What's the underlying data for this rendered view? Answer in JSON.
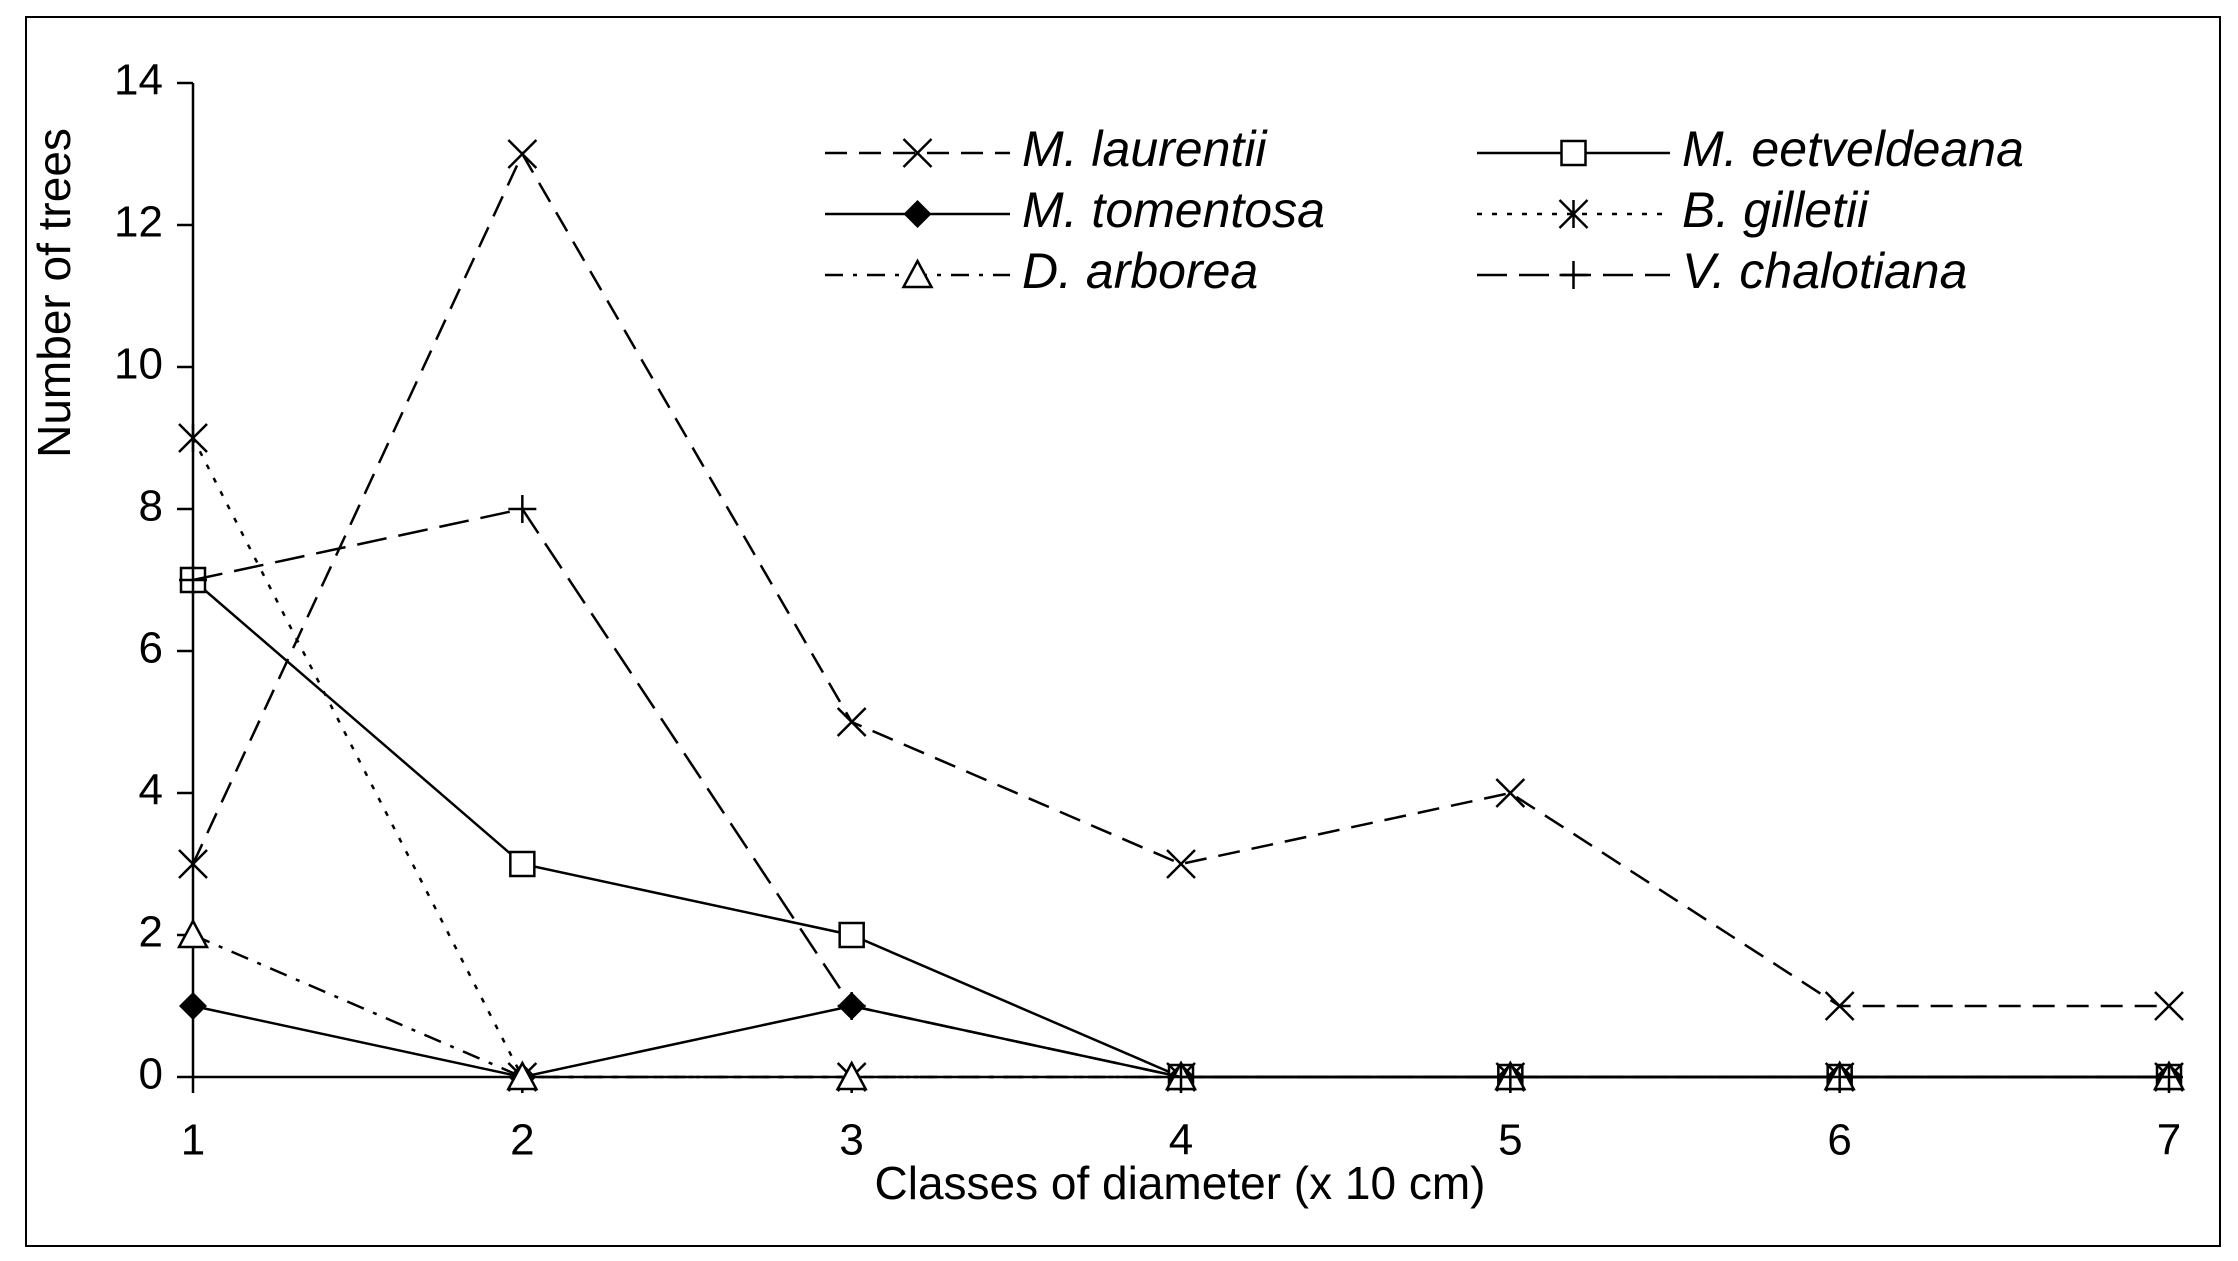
{
  "chart_data": {
    "type": "line",
    "x_label": "Classes of diameter (x 10 cm)",
    "y_label": "Number of trees",
    "categories": [
      "1",
      "2",
      "3",
      "4",
      "5",
      "6",
      "7"
    ],
    "ylim": [
      0,
      14
    ],
    "yticks": [
      0,
      2,
      4,
      6,
      8,
      10,
      12,
      14
    ],
    "series": [
      {
        "name": "M. laurentii",
        "color": "#000000",
        "dash": "dashed",
        "marker": "x",
        "values": [
          3,
          13,
          5,
          3,
          4,
          1,
          1
        ]
      },
      {
        "name": "M. eetveldeana",
        "color": "#000000",
        "dash": "solid",
        "marker": "square",
        "values": [
          7,
          3,
          2,
          0,
          0,
          0,
          0
        ]
      },
      {
        "name": "M. tomentosa",
        "color": "#000000",
        "dash": "solid",
        "marker": "diamond",
        "values": [
          1,
          0,
          1,
          0,
          0,
          0,
          0
        ]
      },
      {
        "name": "B. gilletii",
        "color": "#000000",
        "dash": "dotted",
        "marker": "asterisk",
        "values": [
          9,
          0,
          0,
          0,
          0,
          0,
          0
        ]
      },
      {
        "name": "D. arborea",
        "color": "#000000",
        "dash": "dashdot",
        "marker": "triangle",
        "values": [
          2,
          0,
          0,
          0,
          0,
          0,
          0
        ]
      },
      {
        "name": "V. chalotiana",
        "color": "#000000",
        "dash": "longdash",
        "marker": "plus",
        "values": [
          7,
          8,
          1,
          0,
          0,
          0,
          0
        ]
      }
    ]
  }
}
